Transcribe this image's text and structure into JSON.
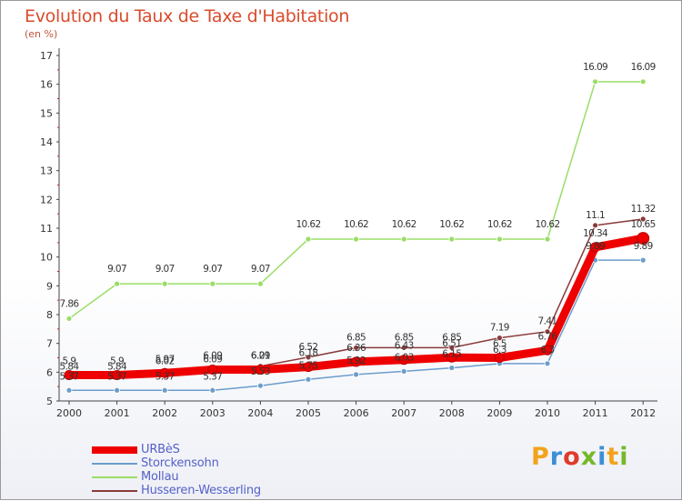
{
  "title": "Evolution du Taux de Taxe d'Habitation",
  "subtitle": "(en %)",
  "logo": {
    "text": "Proxiti",
    "colors": [
      "#f2a31b",
      "#3b8fd6",
      "#e03a2a",
      "#76b82a",
      "#3b8fd6",
      "#f2a31b",
      "#76b82a"
    ]
  },
  "chart_data": {
    "type": "line",
    "title": "Evolution du Taux de Taxe d'Habitation",
    "ylabel": "(en %)",
    "xlabel": "",
    "ylim": [
      5,
      17
    ],
    "yticks": [
      "5",
      "6",
      "7",
      "8",
      "9",
      "10",
      "11",
      "12",
      "13",
      "14",
      "15",
      "16",
      "17"
    ],
    "categories": [
      "2000",
      "2001",
      "2002",
      "2003",
      "2004",
      "2005",
      "2006",
      "2007",
      "2008",
      "2009",
      "2010",
      "2011",
      "2012"
    ],
    "series": [
      {
        "name": "URBèS",
        "color": "#ee0000",
        "values": [
          5.9,
          5.9,
          5.97,
          6.09,
          6.09,
          6.18,
          6.36,
          6.43,
          6.51,
          6.5,
          6.76,
          10.34,
          10.65
        ],
        "labels": [
          "5.9",
          "5.9",
          "5.97",
          "6.09",
          "6.09",
          "6.18",
          "6.36",
          "6.43",
          "6.51",
          "6.5",
          "6.76",
          "10.34",
          "10.65"
        ]
      },
      {
        "name": "Storckensohn",
        "color": "#6b9dcc",
        "values": [
          5.37,
          5.37,
          5.37,
          5.37,
          5.53,
          5.75,
          5.92,
          6.03,
          6.15,
          6.3,
          6.3,
          9.89,
          9.89
        ],
        "labels": [
          "5.37",
          "5.37",
          "5.37",
          "5.37",
          "5.53",
          "5.75",
          "5.92",
          "6.03",
          "6.15",
          "6.3",
          "6.3",
          "9.89",
          "9.89"
        ]
      },
      {
        "name": "Mollau",
        "color": "#99dd66",
        "values": [
          7.86,
          9.07,
          9.07,
          9.07,
          9.07,
          10.62,
          10.62,
          10.62,
          10.62,
          10.62,
          10.62,
          16.09,
          16.09
        ],
        "labels": [
          "7.86",
          "9.07",
          "9.07",
          "9.07",
          "9.07",
          "10.62",
          "10.62",
          "10.62",
          "10.62",
          "10.62",
          "10.62",
          "16.09",
          "16.09"
        ]
      },
      {
        "name": "Husseren-Wesserling",
        "color": "#8a3a3a",
        "values": [
          5.84,
          5.84,
          6.02,
          6.09,
          6.21,
          6.52,
          6.85,
          6.85,
          6.85,
          7.19,
          7.41,
          11.1,
          11.32
        ],
        "labels": [
          "5.84",
          "5.84",
          "6.02",
          "6.09",
          "6.21",
          "6.52",
          "6.85",
          "6.85",
          "6.85",
          "7.19",
          "7.41",
          "11.1",
          "11.32"
        ]
      }
    ],
    "legend": [
      "URBèS",
      "Storckensohn",
      "Mollau",
      "Husseren-Wesserling"
    ],
    "legend_position": "bottom-left",
    "grid": false
  }
}
